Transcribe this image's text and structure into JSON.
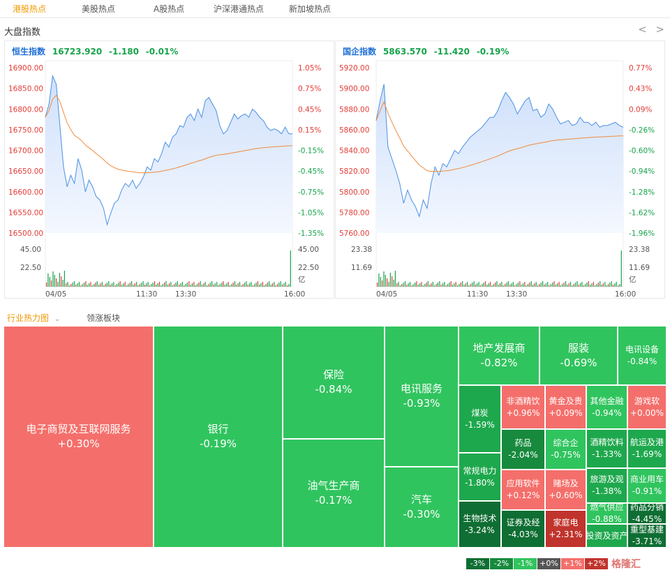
{
  "nav": {
    "tabs": [
      "港股热点",
      "美股热点",
      "A股热点",
      "沪深港通热点",
      "新加坡热点"
    ]
  },
  "section_title": "大盘指数",
  "arrows": {
    "prev": "<",
    "next": ">"
  },
  "hsi": {
    "name": "恒生指数",
    "value": "16723.920",
    "change": "-1.180",
    "change_pct": "-0.01%",
    "price_ticks": [
      "16900.00",
      "16850.00",
      "16800.00",
      "16750.00",
      "16700.00",
      "16650.00",
      "16600.00",
      "16550.00",
      "16500.00"
    ],
    "pct_ticks": [
      "1.05%",
      "0.75%",
      "0.45%",
      "0.15%",
      "-0.15%",
      "-0.45%",
      "-0.75%",
      "-1.05%",
      "-1.35%"
    ],
    "vol_left": [
      "45.00",
      "22.50"
    ],
    "vol_right": [
      "45.00",
      "22.50",
      "亿"
    ],
    "time_labels": [
      "04/05",
      "11:30",
      "13:30",
      "16:00"
    ]
  },
  "hscei": {
    "name": "国企指数",
    "value": "5863.570",
    "change": "-11.420",
    "change_pct": "-0.19%",
    "price_ticks": [
      "5920.00",
      "5900.00",
      "5880.00",
      "5860.00",
      "5840.00",
      "5820.00",
      "5800.00",
      "5780.00",
      "5760.00"
    ],
    "pct_ticks": [
      "0.77%",
      "0.43%",
      "0.09%",
      "-0.26%",
      "-0.60%",
      "-0.94%",
      "-1.28%",
      "-1.62%",
      "-1.96%"
    ],
    "vol_left": [
      "23.38",
      "11.69"
    ],
    "vol_right": [
      "23.38",
      "11.69",
      "亿"
    ],
    "time_labels": [
      "04/05",
      "11:30",
      "13:30",
      "16:00"
    ]
  },
  "heatmap_tabs": {
    "industry": "行业热力图",
    "leaders": "领涨板块",
    "dropdown_icon": "chevron-down-icon"
  },
  "sectors": [
    {
      "name": "电子商贸及互联网服务",
      "pct": "+0.30%",
      "color": "#f46f6b"
    },
    {
      "name": "银行",
      "pct": "-0.19%",
      "color": "#30c45e"
    },
    {
      "name": "保险",
      "pct": "-0.84%",
      "color": "#30c45e"
    },
    {
      "name": "油气生产商",
      "pct": "-0.17%",
      "color": "#30c45e"
    },
    {
      "name": "电讯服务",
      "pct": "-0.93%",
      "color": "#30c45e"
    },
    {
      "name": "汽车",
      "pct": "-0.30%",
      "color": "#30c45e"
    },
    {
      "name": "地产发展商",
      "pct": "-0.82%",
      "color": "#30c45e"
    },
    {
      "name": "服装",
      "pct": "-0.69%",
      "color": "#30c45e"
    },
    {
      "name": "电讯设备",
      "pct": "-0.84%",
      "color": "#30c45e"
    },
    {
      "name": "煤炭",
      "pct": "-1.59%",
      "color": "#1ea84d"
    },
    {
      "name": "非酒精饮",
      "pct": "+0.96%",
      "color": "#f46f6b"
    },
    {
      "name": "黄金及贵",
      "pct": "+0.09%",
      "color": "#f46f6b"
    },
    {
      "name": "其他金融",
      "pct": "-0.94%",
      "color": "#30c45e"
    },
    {
      "name": "游戏软",
      "pct": "+0.00%",
      "color": "#f46f6b"
    },
    {
      "name": "药品",
      "pct": "-2.04%",
      "color": "#178a3e"
    },
    {
      "name": "综合企",
      "pct": "-0.75%",
      "color": "#30c45e"
    },
    {
      "name": "酒精饮料",
      "pct": "-1.33%",
      "color": "#1ea84d"
    },
    {
      "name": "航运及港",
      "pct": "-1.69%",
      "color": "#1ea84d"
    },
    {
      "name": "常规电力",
      "pct": "-1.80%",
      "color": "#1ea84d"
    },
    {
      "name": "应用软件",
      "pct": "+0.12%",
      "color": "#f46f6b"
    },
    {
      "name": "赌场及",
      "pct": "+0.60%",
      "color": "#f46f6b"
    },
    {
      "name": "旅游及观",
      "pct": "-1.38%",
      "color": "#1ea84d"
    },
    {
      "name": "商业用车",
      "pct": "-0.91%",
      "color": "#30c45e"
    },
    {
      "name": "燃气供应",
      "pct": "-0.88%",
      "color": "#30c45e"
    },
    {
      "name": "药品分销",
      "pct": "-4.45%",
      "color": "#0f6e33"
    },
    {
      "name": "生物技术",
      "pct": "-3.24%",
      "color": "#0f6e33"
    },
    {
      "name": "证券及经",
      "pct": "-4.03%",
      "color": "#0f6e33"
    },
    {
      "name": "家庭电",
      "pct": "+2.31%",
      "color": "#c0342d"
    },
    {
      "name": "投资及资产",
      "pct": "",
      "color": "#1ea84d"
    },
    {
      "name": "重型基建",
      "pct": "-3.71%",
      "color": "#0f6e33"
    }
  ],
  "legend": [
    {
      "label": "-3%",
      "color": "#0f6e33"
    },
    {
      "label": "-2%",
      "color": "#178a3e"
    },
    {
      "label": "-1%",
      "color": "#30c45e"
    },
    {
      "label": "+0%",
      "color": "#555555"
    },
    {
      "label": "+1%",
      "color": "#f46f6b"
    },
    {
      "label": "+2%",
      "color": "#c0342d"
    }
  ],
  "logo": "格隆汇"
}
